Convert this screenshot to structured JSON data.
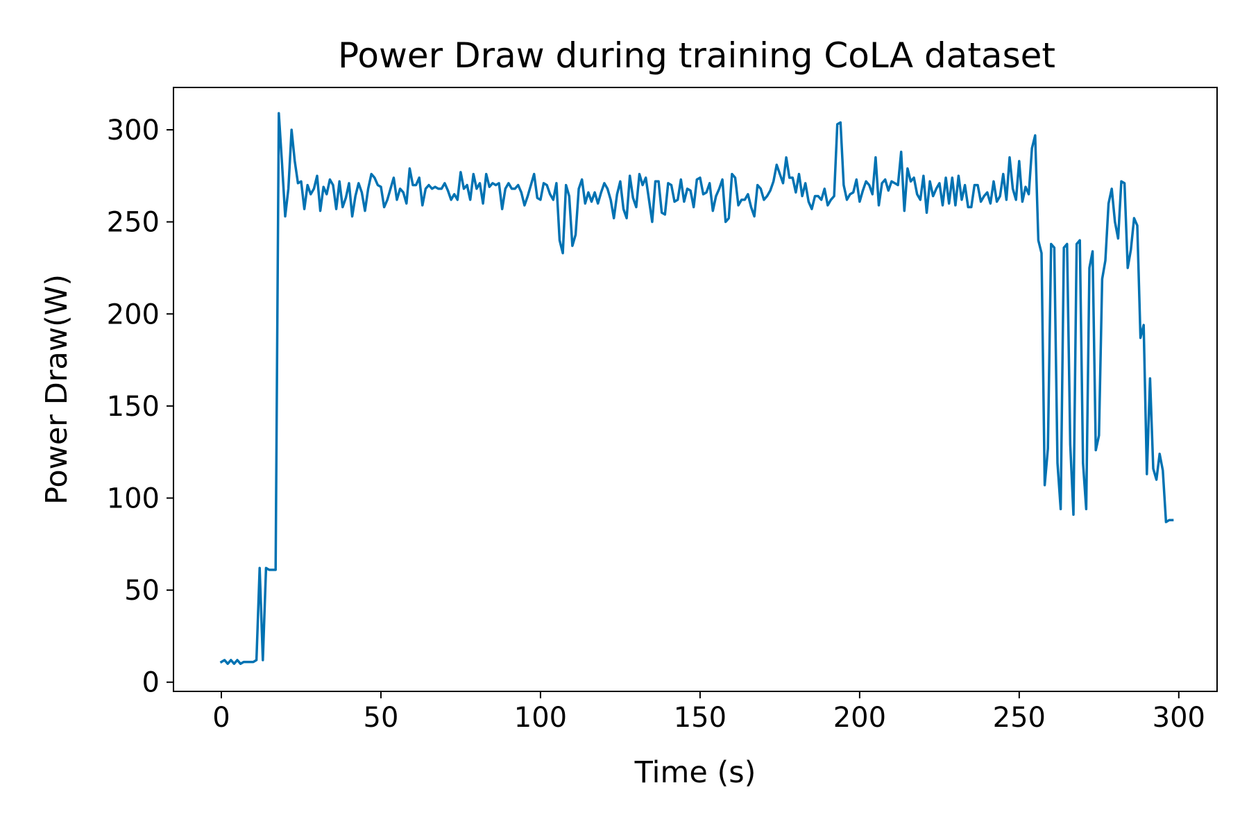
{
  "chart_data": {
    "type": "line",
    "title": "Power Draw during training CoLA dataset",
    "xlabel": "Time (s)",
    "ylabel": "Power Draw(W)",
    "xlim": [
      -15,
      312
    ],
    "ylim": [
      -5,
      323
    ],
    "xticks": [
      0,
      50,
      100,
      150,
      200,
      250,
      300
    ],
    "yticks": [
      0,
      50,
      100,
      150,
      200,
      250,
      300
    ],
    "xtick_labels": [
      "0",
      "50",
      "100",
      "150",
      "200",
      "250",
      "300"
    ],
    "ytick_labels": [
      "0",
      "50",
      "100",
      "150",
      "200",
      "250",
      "300"
    ],
    "grid": false,
    "series": [
      {
        "name": "Power Draw",
        "color": "#0072b2",
        "points": [
          [
            0,
            11
          ],
          [
            1,
            12
          ],
          [
            2,
            10
          ],
          [
            3,
            12
          ],
          [
            4,
            10
          ],
          [
            5,
            12
          ],
          [
            6,
            10
          ],
          [
            7,
            11
          ],
          [
            8,
            11
          ],
          [
            9,
            11
          ],
          [
            10,
            11
          ],
          [
            11,
            12
          ],
          [
            12,
            62
          ],
          [
            13,
            12
          ],
          [
            14,
            62
          ],
          [
            15,
            61
          ],
          [
            16,
            61
          ],
          [
            17,
            61
          ],
          [
            18,
            309
          ],
          [
            19,
            282
          ],
          [
            20,
            253
          ],
          [
            21,
            268
          ],
          [
            22,
            300
          ],
          [
            23,
            283
          ],
          [
            24,
            271
          ],
          [
            25,
            272
          ],
          [
            26,
            257
          ],
          [
            27,
            270
          ],
          [
            28,
            265
          ],
          [
            29,
            268
          ],
          [
            30,
            275
          ],
          [
            31,
            256
          ],
          [
            32,
            269
          ],
          [
            33,
            265
          ],
          [
            34,
            273
          ],
          [
            35,
            270
          ],
          [
            36,
            257
          ],
          [
            37,
            272
          ],
          [
            38,
            258
          ],
          [
            39,
            263
          ],
          [
            40,
            271
          ],
          [
            41,
            253
          ],
          [
            42,
            264
          ],
          [
            43,
            271
          ],
          [
            44,
            266
          ],
          [
            45,
            256
          ],
          [
            46,
            268
          ],
          [
            47,
            276
          ],
          [
            48,
            274
          ],
          [
            49,
            270
          ],
          [
            50,
            269
          ],
          [
            51,
            258
          ],
          [
            52,
            262
          ],
          [
            53,
            268
          ],
          [
            54,
            274
          ],
          [
            55,
            262
          ],
          [
            56,
            268
          ],
          [
            57,
            266
          ],
          [
            58,
            260
          ],
          [
            59,
            279
          ],
          [
            60,
            270
          ],
          [
            61,
            270
          ],
          [
            62,
            274
          ],
          [
            63,
            259
          ],
          [
            64,
            268
          ],
          [
            65,
            270
          ],
          [
            66,
            268
          ],
          [
            67,
            269
          ],
          [
            68,
            268
          ],
          [
            69,
            268
          ],
          [
            70,
            271
          ],
          [
            71,
            267
          ],
          [
            72,
            262
          ],
          [
            73,
            265
          ],
          [
            74,
            262
          ],
          [
            75,
            277
          ],
          [
            76,
            268
          ],
          [
            77,
            270
          ],
          [
            78,
            262
          ],
          [
            79,
            276
          ],
          [
            80,
            268
          ],
          [
            81,
            271
          ],
          [
            82,
            260
          ],
          [
            83,
            276
          ],
          [
            84,
            269
          ],
          [
            85,
            271
          ],
          [
            86,
            270
          ],
          [
            87,
            271
          ],
          [
            88,
            257
          ],
          [
            89,
            268
          ],
          [
            90,
            271
          ],
          [
            91,
            268
          ],
          [
            92,
            268
          ],
          [
            93,
            270
          ],
          [
            94,
            266
          ],
          [
            95,
            259
          ],
          [
            96,
            264
          ],
          [
            97,
            270
          ],
          [
            98,
            276
          ],
          [
            99,
            263
          ],
          [
            100,
            262
          ],
          [
            101,
            271
          ],
          [
            102,
            270
          ],
          [
            103,
            265
          ],
          [
            104,
            262
          ],
          [
            105,
            271
          ],
          [
            106,
            240
          ],
          [
            107,
            233
          ],
          [
            108,
            270
          ],
          [
            109,
            264
          ],
          [
            110,
            237
          ],
          [
            111,
            243
          ],
          [
            112,
            268
          ],
          [
            113,
            273
          ],
          [
            114,
            260
          ],
          [
            115,
            266
          ],
          [
            116,
            261
          ],
          [
            117,
            266
          ],
          [
            118,
            260
          ],
          [
            119,
            266
          ],
          [
            120,
            271
          ],
          [
            121,
            268
          ],
          [
            122,
            262
          ],
          [
            123,
            252
          ],
          [
            124,
            265
          ],
          [
            125,
            272
          ],
          [
            126,
            257
          ],
          [
            127,
            252
          ],
          [
            128,
            275
          ],
          [
            129,
            263
          ],
          [
            130,
            258
          ],
          [
            131,
            276
          ],
          [
            132,
            270
          ],
          [
            133,
            274
          ],
          [
            134,
            262
          ],
          [
            135,
            250
          ],
          [
            136,
            272
          ],
          [
            137,
            272
          ],
          [
            138,
            255
          ],
          [
            139,
            254
          ],
          [
            140,
            271
          ],
          [
            141,
            270
          ],
          [
            142,
            261
          ],
          [
            143,
            262
          ],
          [
            144,
            273
          ],
          [
            145,
            261
          ],
          [
            146,
            268
          ],
          [
            147,
            267
          ],
          [
            148,
            258
          ],
          [
            149,
            273
          ],
          [
            150,
            274
          ],
          [
            151,
            265
          ],
          [
            152,
            266
          ],
          [
            153,
            271
          ],
          [
            154,
            256
          ],
          [
            155,
            264
          ],
          [
            156,
            268
          ],
          [
            157,
            273
          ],
          [
            158,
            250
          ],
          [
            159,
            252
          ],
          [
            160,
            276
          ],
          [
            161,
            274
          ],
          [
            162,
            259
          ],
          [
            163,
            262
          ],
          [
            164,
            262
          ],
          [
            165,
            265
          ],
          [
            166,
            258
          ],
          [
            167,
            253
          ],
          [
            168,
            270
          ],
          [
            169,
            268
          ],
          [
            170,
            262
          ],
          [
            171,
            264
          ],
          [
            172,
            267
          ],
          [
            173,
            272
          ],
          [
            174,
            281
          ],
          [
            175,
            276
          ],
          [
            176,
            271
          ],
          [
            177,
            285
          ],
          [
            178,
            274
          ],
          [
            179,
            274
          ],
          [
            180,
            266
          ],
          [
            181,
            276
          ],
          [
            182,
            264
          ],
          [
            183,
            271
          ],
          [
            184,
            261
          ],
          [
            185,
            257
          ],
          [
            186,
            264
          ],
          [
            187,
            264
          ],
          [
            188,
            262
          ],
          [
            189,
            268
          ],
          [
            190,
            259
          ],
          [
            191,
            262
          ],
          [
            192,
            264
          ],
          [
            193,
            303
          ],
          [
            194,
            304
          ],
          [
            195,
            270
          ],
          [
            196,
            262
          ],
          [
            197,
            265
          ],
          [
            198,
            266
          ],
          [
            199,
            273
          ],
          [
            200,
            261
          ],
          [
            201,
            267
          ],
          [
            202,
            272
          ],
          [
            203,
            270
          ],
          [
            204,
            265
          ],
          [
            205,
            285
          ],
          [
            206,
            259
          ],
          [
            207,
            271
          ],
          [
            208,
            273
          ],
          [
            209,
            267
          ],
          [
            210,
            272
          ],
          [
            211,
            271
          ],
          [
            212,
            270
          ],
          [
            213,
            288
          ],
          [
            214,
            256
          ],
          [
            215,
            279
          ],
          [
            216,
            272
          ],
          [
            217,
            274
          ],
          [
            218,
            265
          ],
          [
            219,
            262
          ],
          [
            220,
            275
          ],
          [
            221,
            255
          ],
          [
            222,
            272
          ],
          [
            223,
            264
          ],
          [
            224,
            268
          ],
          [
            225,
            271
          ],
          [
            226,
            259
          ],
          [
            227,
            274
          ],
          [
            228,
            260
          ],
          [
            229,
            274
          ],
          [
            230,
            259
          ],
          [
            231,
            275
          ],
          [
            232,
            262
          ],
          [
            233,
            270
          ],
          [
            234,
            258
          ],
          [
            235,
            258
          ],
          [
            236,
            270
          ],
          [
            237,
            270
          ],
          [
            238,
            261
          ],
          [
            239,
            264
          ],
          [
            240,
            266
          ],
          [
            241,
            260
          ],
          [
            242,
            272
          ],
          [
            243,
            261
          ],
          [
            244,
            264
          ],
          [
            245,
            276
          ],
          [
            246,
            262
          ],
          [
            247,
            285
          ],
          [
            248,
            268
          ],
          [
            249,
            262
          ],
          [
            250,
            283
          ],
          [
            251,
            261
          ],
          [
            252,
            269
          ],
          [
            253,
            265
          ],
          [
            254,
            290
          ],
          [
            255,
            297
          ],
          [
            256,
            240
          ],
          [
            257,
            233
          ],
          [
            258,
            107
          ],
          [
            259,
            127
          ],
          [
            260,
            238
          ],
          [
            261,
            236
          ],
          [
            262,
            119
          ],
          [
            263,
            94
          ],
          [
            264,
            236
          ],
          [
            265,
            238
          ],
          [
            266,
            129
          ],
          [
            267,
            91
          ],
          [
            268,
            238
          ],
          [
            269,
            240
          ],
          [
            270,
            119
          ],
          [
            271,
            94
          ],
          [
            272,
            225
          ],
          [
            273,
            234
          ],
          [
            274,
            126
          ],
          [
            275,
            134
          ],
          [
            276,
            219
          ],
          [
            277,
            229
          ],
          [
            278,
            260
          ],
          [
            279,
            268
          ],
          [
            280,
            250
          ],
          [
            281,
            241
          ],
          [
            282,
            272
          ],
          [
            283,
            271
          ],
          [
            284,
            225
          ],
          [
            285,
            235
          ],
          [
            286,
            252
          ],
          [
            287,
            248
          ],
          [
            288,
            187
          ],
          [
            289,
            194
          ],
          [
            290,
            113
          ],
          [
            291,
            165
          ],
          [
            292,
            116
          ],
          [
            293,
            110
          ],
          [
            294,
            124
          ],
          [
            295,
            115
          ],
          [
            296,
            87
          ],
          [
            297,
            88
          ],
          [
            298,
            88
          ]
        ]
      }
    ]
  }
}
